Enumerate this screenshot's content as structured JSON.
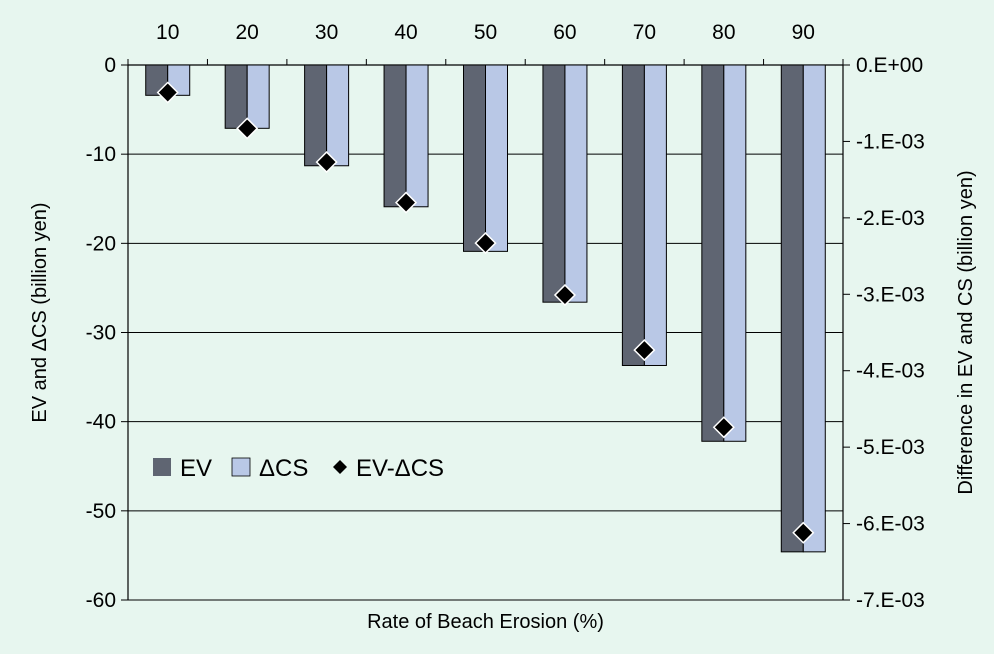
{
  "chart_data": {
    "type": "bar",
    "xlabel": "Rate of Beach Erosion (%)",
    "ylabel_left": "EV and ΔCS (billion yen)",
    "ylabel_right": "Difference in EV and CS   (billion yen)",
    "categories": [
      "10",
      "20",
      "30",
      "40",
      "50",
      "60",
      "70",
      "80",
      "90"
    ],
    "x_axis_position": "top",
    "ylim_left": [
      -60,
      0
    ],
    "yticks_left": [
      0,
      -10,
      -20,
      -30,
      -40,
      -50,
      -60
    ],
    "ytick_labels_left": [
      "0",
      "-10",
      "-20",
      "-30",
      "-40",
      "-50",
      "-60"
    ],
    "ylim_right": [
      -0.007,
      0
    ],
    "yticks_right": [
      0,
      -0.001,
      -0.002,
      -0.003,
      -0.004,
      -0.005,
      -0.006,
      -0.007
    ],
    "ytick_labels_right": [
      "0.E+00",
      "-1.E-03",
      "-2.E-03",
      "-3.E-03",
      "-4.E-03",
      "-5.E-03",
      "-6.E-03",
      "-7.E-03"
    ],
    "grid": "horizontal",
    "legend_position": "lower-left",
    "series": [
      {
        "name": "EV",
        "axis": "left",
        "color": "#5f6572",
        "values": [
          -3.4,
          -7.1,
          -11.3,
          -15.9,
          -20.9,
          -26.6,
          -33.7,
          -42.2,
          -54.6
        ]
      },
      {
        "name": "ΔCS",
        "axis": "left",
        "color": "#b9c8e6",
        "values": [
          -3.4,
          -7.1,
          -11.3,
          -15.9,
          -20.9,
          -26.6,
          -33.7,
          -42.2,
          -54.6
        ]
      },
      {
        "name": "EV-ΔCS",
        "axis": "right",
        "type": "scatter",
        "marker": "diamond",
        "color": "#000000",
        "values": [
          -0.00036,
          -0.00083,
          -0.00127,
          -0.0018,
          -0.00233,
          -0.00301,
          -0.00373,
          -0.00474,
          -0.00612
        ]
      }
    ]
  }
}
